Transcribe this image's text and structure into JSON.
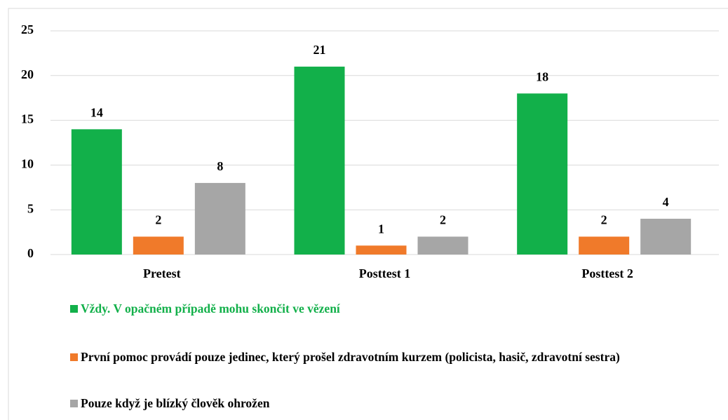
{
  "chart_data": {
    "type": "bar",
    "categories": [
      "Pretest",
      "Posttest 1",
      "Posttest 2"
    ],
    "series": [
      {
        "name": "Vždy. V opačném případě mohu skončit ve vězení",
        "color": "#12b04a",
        "values": [
          14,
          21,
          18
        ]
      },
      {
        "name": "První pomoc provádí pouze jedinec, který prošel zdravotním kurzem (policista, hasič, zdravotní sestra)",
        "color": "#f07a2a",
        "values": [
          2,
          1,
          2
        ]
      },
      {
        "name": "Pouze když je blízký člověk ohrožen",
        "color": "#a6a6a6",
        "values": [
          8,
          2,
          4
        ]
      }
    ],
    "ylim": [
      0,
      25
    ],
    "yticks": [
      0,
      5,
      10,
      15,
      20,
      25
    ],
    "grid": true
  }
}
